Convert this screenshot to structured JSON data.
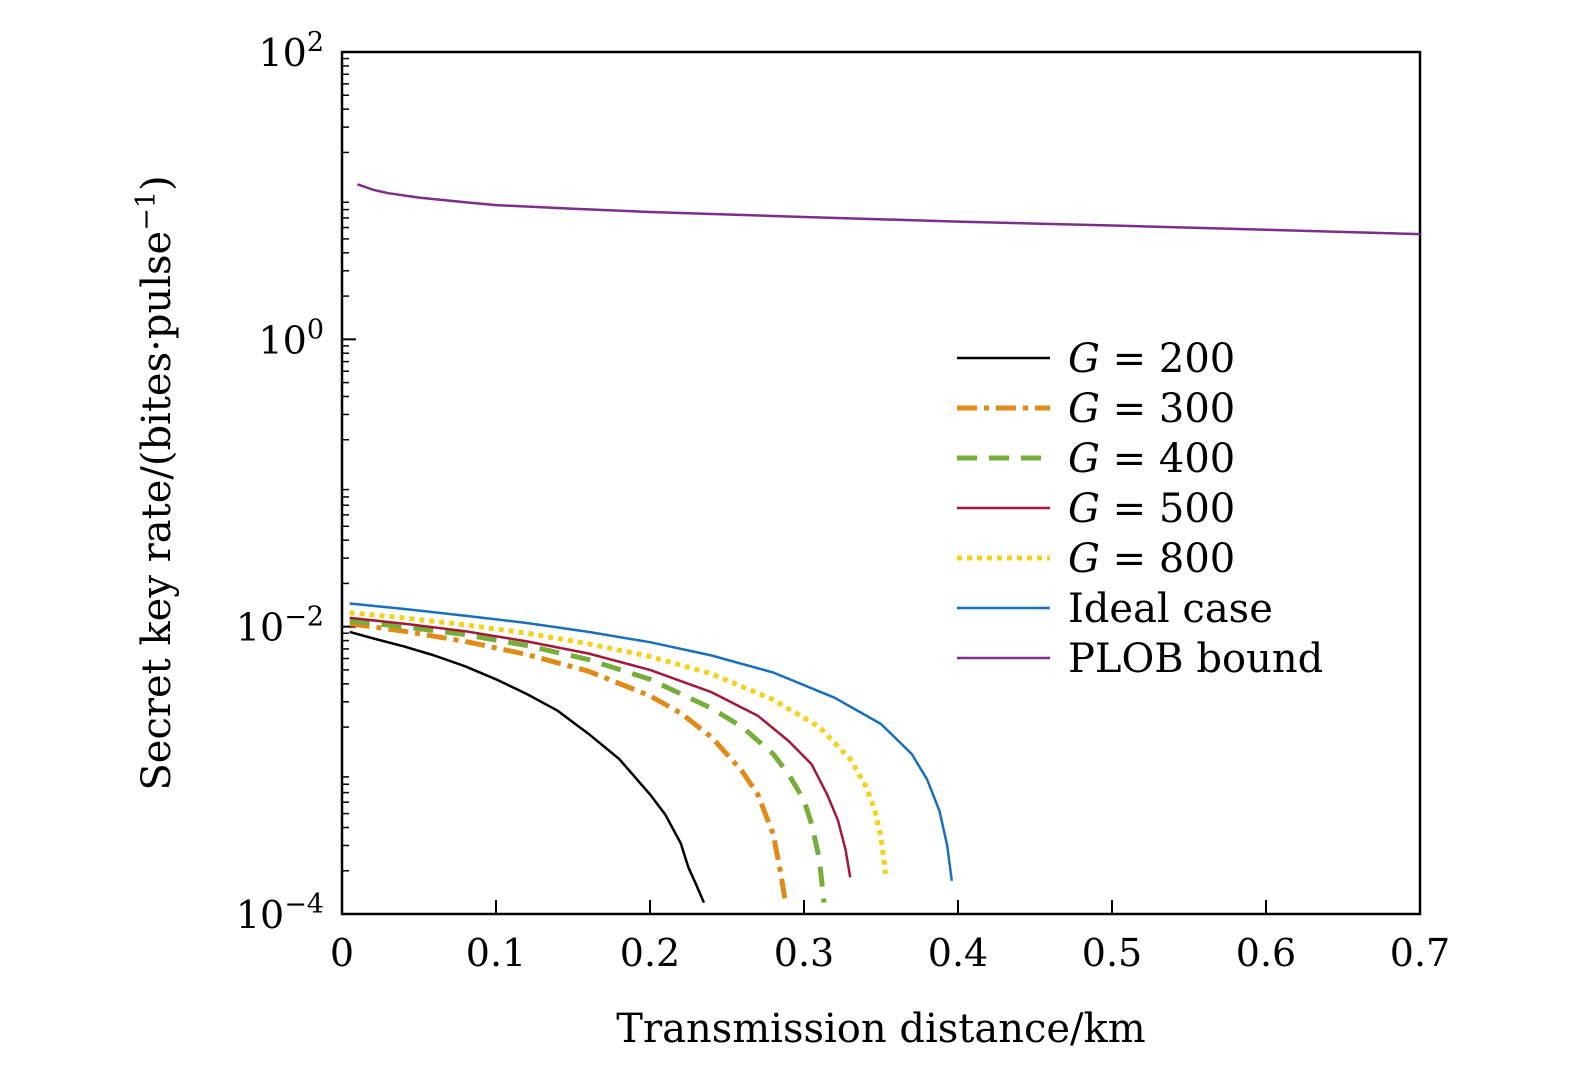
{
  "chart_data": {
    "type": "line",
    "title": "",
    "xlabel": "Transmission distance/km",
    "ylabel": {
      "main": "Secret key rate/(bites·pulse",
      "sup": "−1",
      "close": ")"
    },
    "xlim": [
      0,
      0.7
    ],
    "ylim": [
      0.0001,
      100
    ],
    "yscale": "log",
    "grid": false,
    "legend_position": "right",
    "x_ticks": [
      {
        "value": 0,
        "label": "0"
      },
      {
        "value": 0.1,
        "label": "0.1"
      },
      {
        "value": 0.2,
        "label": "0.2"
      },
      {
        "value": 0.3,
        "label": "0.3"
      },
      {
        "value": 0.4,
        "label": "0.4"
      },
      {
        "value": 0.5,
        "label": "0.5"
      },
      {
        "value": 0.6,
        "label": "0.6"
      },
      {
        "value": 0.7,
        "label": "0.7"
      }
    ],
    "y_ticks": [
      {
        "value": 0.0001,
        "base": "10",
        "exp": "−4"
      },
      {
        "value": 0.01,
        "base": "10",
        "exp": "−2"
      },
      {
        "value": 1,
        "base": "10",
        "exp": "0"
      },
      {
        "value": 100,
        "base": "10",
        "exp": "2"
      }
    ],
    "series": [
      {
        "name": "G = 200",
        "var": "G",
        "rest": " = 200",
        "color": "#000000",
        "style": "solid",
        "x": [
          0.005,
          0.02,
          0.04,
          0.06,
          0.08,
          0.1,
          0.12,
          0.14,
          0.16,
          0.18,
          0.2,
          0.21,
          0.22,
          0.225,
          0.23,
          0.235
        ],
        "y": [
          0.0092,
          0.0083,
          0.0073,
          0.0063,
          0.0053,
          0.0043,
          0.0034,
          0.0026,
          0.0018,
          0.0012,
          0.00068,
          0.00049,
          0.00031,
          0.00021,
          0.00016,
          0.00012
        ]
      },
      {
        "name": "G = 300",
        "var": "G",
        "rest": " = 300",
        "color": "#e08a17",
        "style": "dashdot",
        "x": [
          0.005,
          0.04,
          0.08,
          0.12,
          0.16,
          0.2,
          0.22,
          0.24,
          0.26,
          0.27,
          0.28,
          0.285,
          0.288
        ],
        "y": [
          0.0105,
          0.0093,
          0.0079,
          0.0064,
          0.0049,
          0.0033,
          0.0025,
          0.0017,
          0.00098,
          0.00068,
          0.00036,
          0.00019,
          0.00012
        ]
      },
      {
        "name": "G = 400",
        "var": "G",
        "rest": " = 400",
        "color": "#77ad3a",
        "style": "dashed",
        "x": [
          0.005,
          0.04,
          0.08,
          0.12,
          0.16,
          0.2,
          0.24,
          0.26,
          0.28,
          0.29,
          0.3,
          0.305,
          0.31,
          0.313
        ],
        "y": [
          0.011,
          0.01,
          0.0088,
          0.0074,
          0.0059,
          0.0043,
          0.0027,
          0.002,
          0.0013,
          0.00094,
          0.00062,
          0.00042,
          0.00024,
          0.00012
        ]
      },
      {
        "name": "G = 500",
        "var": "G",
        "rest": " = 500",
        "color": "#a3193a",
        "style": "solid",
        "x": [
          0.005,
          0.04,
          0.08,
          0.12,
          0.16,
          0.2,
          0.24,
          0.27,
          0.29,
          0.305,
          0.315,
          0.322,
          0.327,
          0.33
        ],
        "y": [
          0.0115,
          0.0105,
          0.0093,
          0.0079,
          0.0065,
          0.005,
          0.0035,
          0.0024,
          0.0016,
          0.0011,
          0.00068,
          0.00045,
          0.00028,
          0.00018
        ]
      },
      {
        "name": "G = 800",
        "var": "G",
        "rest": " = 800",
        "color": "#f3d21b",
        "style": "dotted",
        "x": [
          0.005,
          0.04,
          0.08,
          0.12,
          0.16,
          0.2,
          0.24,
          0.28,
          0.31,
          0.33,
          0.34,
          0.346,
          0.35,
          0.353
        ],
        "y": [
          0.0125,
          0.0115,
          0.0103,
          0.009,
          0.0076,
          0.0062,
          0.0047,
          0.0031,
          0.002,
          0.0012,
          0.00078,
          0.00053,
          0.00034,
          0.00019
        ]
      },
      {
        "name": "Ideal case",
        "var": "",
        "rest": "Ideal case",
        "color": "#1a70b8",
        "style": "solid",
        "x": [
          0.005,
          0.04,
          0.08,
          0.12,
          0.16,
          0.2,
          0.24,
          0.28,
          0.32,
          0.35,
          0.37,
          0.38,
          0.388,
          0.393,
          0.396
        ],
        "y": [
          0.0145,
          0.0133,
          0.0119,
          0.0106,
          0.0092,
          0.0078,
          0.0063,
          0.0048,
          0.0032,
          0.0021,
          0.0013,
          0.00086,
          0.00052,
          0.0003,
          0.00017
        ]
      },
      {
        "name": "PLOB bound",
        "var": "",
        "rest": "PLOB bound",
        "color": "#7b2f8a",
        "style": "solid",
        "x": [
          0.01,
          0.015,
          0.02,
          0.03,
          0.05,
          0.08,
          0.1,
          0.15,
          0.2,
          0.3,
          0.4,
          0.5,
          0.6,
          0.7
        ],
        "y": [
          12.0,
          11.5,
          11.0,
          10.4,
          9.7,
          9.0,
          8.6,
          8.1,
          7.7,
          7.1,
          6.6,
          6.2,
          5.8,
          5.4
        ]
      }
    ]
  }
}
